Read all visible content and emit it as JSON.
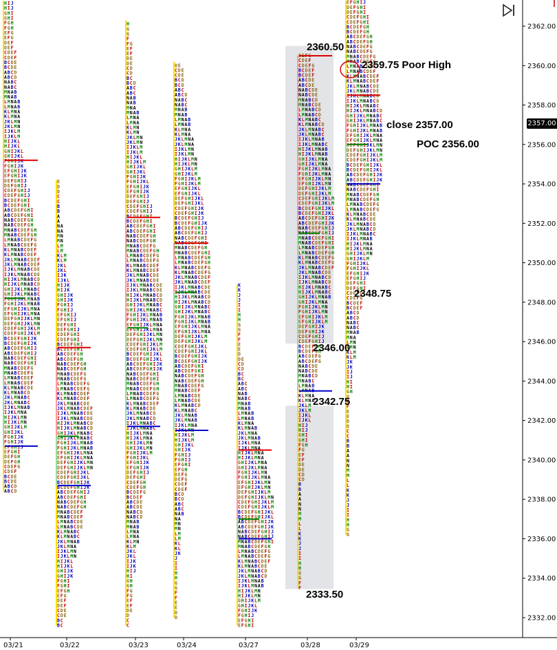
{
  "chart_data": {
    "type": "market-profile",
    "title": "",
    "xlabel": "",
    "ylabel": "",
    "ylim": [
      2331.5,
      2363.3
    ],
    "y_ticks": [
      "2362.00",
      "2360.00",
      "2358.00",
      "2356.00",
      "2354.00",
      "2352.00",
      "2350.00",
      "2348.00",
      "2346.00",
      "2344.00",
      "2342.00",
      "2340.00",
      "2338.00",
      "2336.00",
      "2334.00",
      "2332.00"
    ],
    "y_tick_values": [
      2362,
      2360,
      2358,
      2356,
      2354,
      2352,
      2350,
      2348,
      2346,
      2344,
      2342,
      2340,
      2338,
      2336,
      2334,
      2332
    ],
    "last_price": "2357.00",
    "sessions": [
      {
        "date": "03/21",
        "high": 2366.0,
        "low": 2338.4,
        "vah": 2355.2,
        "poc": 2348.2,
        "val": 2340.7
      },
      {
        "date": "03/22",
        "high": 2354.2,
        "low": 2331.5,
        "vah": 2345.7,
        "poc": 2341.2,
        "val": 2338.7
      },
      {
        "date": "03/23",
        "high": 2362.3,
        "low": 2331.5,
        "vah": 2352.3,
        "poc": 2346.7,
        "val": 2341.7
      },
      {
        "date": "03/24",
        "high": 2360.2,
        "low": 2332.0,
        "vah": 2351.0,
        "poc": 2348.5,
        "val": 2341.5
      },
      {
        "date": "03/27",
        "high": 2348.9,
        "low": 2331.5,
        "vah": 2340.5,
        "poc": 2337.0,
        "val": 2336.0
      },
      {
        "date": "03/28",
        "high": 2360.5,
        "low": 2333.5,
        "vah": 2360.5,
        "poc": 2351.5,
        "val": 2343.5
      },
      {
        "date": "03/29",
        "high": 2363.3,
        "low": 2336.2,
        "vah": 2358.5,
        "poc": 2356.0,
        "val": 2354.0
      }
    ],
    "annotations": {
      "high_2828": "2360.50",
      "poor_high": "2359.75 Poor High",
      "close": "close 2357.00",
      "poc": "POC 2356.00",
      "low_2329": "2348.75",
      "range_low_upper": "2346.00",
      "range_high_lower": "2342.75",
      "low_2828": "2333.50"
    },
    "colors": {
      "vah": "#dd0000",
      "poc": "#008000",
      "val": "#0000cc",
      "range": "#e2e4e8",
      "tpo_a": "#000000",
      "tpo_b": "#0000c0",
      "tpo_c": "#c00000",
      "tpo_d": "#8b6914",
      "tpo_e": "#8b6914",
      "tpo_k": "#0000c0",
      "tpo_l": "#c00000",
      "tpo_m": "#008000"
    }
  }
}
